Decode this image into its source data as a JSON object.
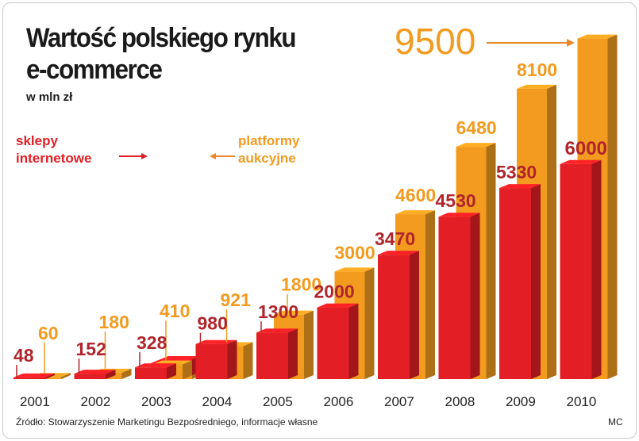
{
  "title_lines": [
    "Wartość polskiego rynku",
    "e-commerce"
  ],
  "subtitle": "w mln zł",
  "legend": {
    "shops_lines": [
      "sklepy",
      "internetowe"
    ],
    "auctions_lines": [
      "platformy",
      "aukcyjne"
    ]
  },
  "source": "Źródło: Stowarzyszenie Marketingu Bezpośredniego, informacje własne",
  "credit": "MC",
  "colors": {
    "shops": "#e31e24",
    "shops_label": "#b0252b",
    "auctions": "#f29b1f",
    "arrow": "#e8872b"
  },
  "chart_data": {
    "type": "bar",
    "categories": [
      "2001",
      "2002",
      "2003",
      "2004",
      "2005",
      "2006",
      "2007",
      "2008",
      "2009",
      "2010"
    ],
    "series": [
      {
        "name": "sklepy internetowe",
        "values": [
          48,
          152,
          328,
          980,
          1300,
          2000,
          3470,
          4530,
          5330,
          6000
        ]
      },
      {
        "name": "platformy aukcyjne",
        "values": [
          60,
          180,
          410,
          921,
          1800,
          3000,
          4600,
          6480,
          8100,
          9500
        ]
      }
    ],
    "title": "Wartość polskiego rynku e-commerce",
    "ylabel": "w mln zł",
    "legend_position": "top-left",
    "grid": false
  }
}
